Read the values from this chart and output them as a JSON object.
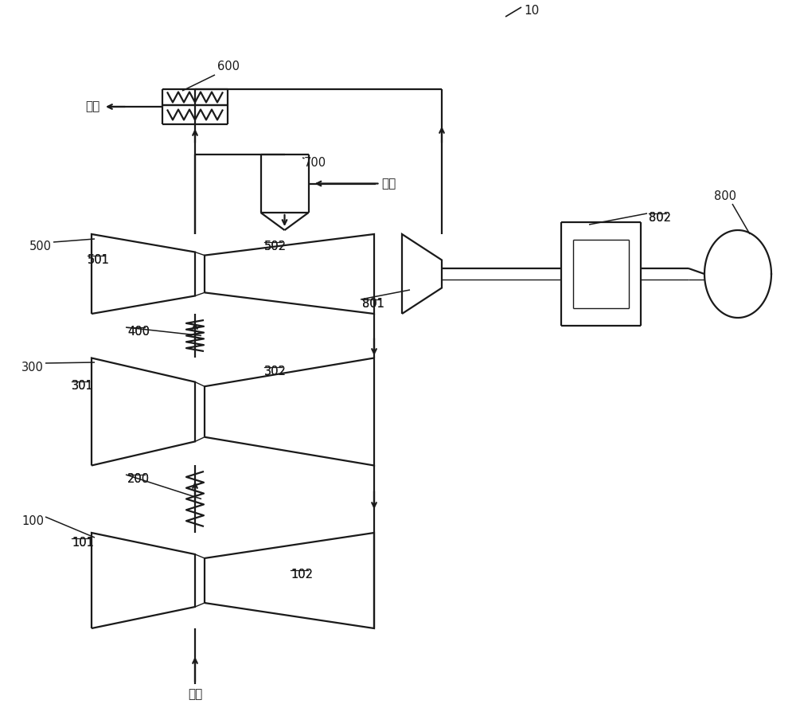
{
  "bg": "#ffffff",
  "lc": "#1a1a1a",
  "lw": 1.6,
  "lw_thin": 0.9,
  "lw_shaft": 1.0,
  "fs_label": 11,
  "fs_small": 10.5,
  "label_10": "10",
  "label_600": "600",
  "label_700": "700",
  "label_800": "800",
  "label_801": "801",
  "label_802": "802",
  "label_500": "500",
  "label_501": "501",
  "label_502": "502",
  "label_400": "400",
  "label_300": "300",
  "label_301": "301",
  "label_302": "302",
  "label_200": "200",
  "label_100": "100",
  "label_101": "101",
  "label_102": "102",
  "label_air": "空气",
  "label_exhaust": "尾气",
  "label_fuel": "燃料",
  "xlim": [
    0,
    10.0
  ],
  "ylim": [
    0,
    8.84
  ]
}
